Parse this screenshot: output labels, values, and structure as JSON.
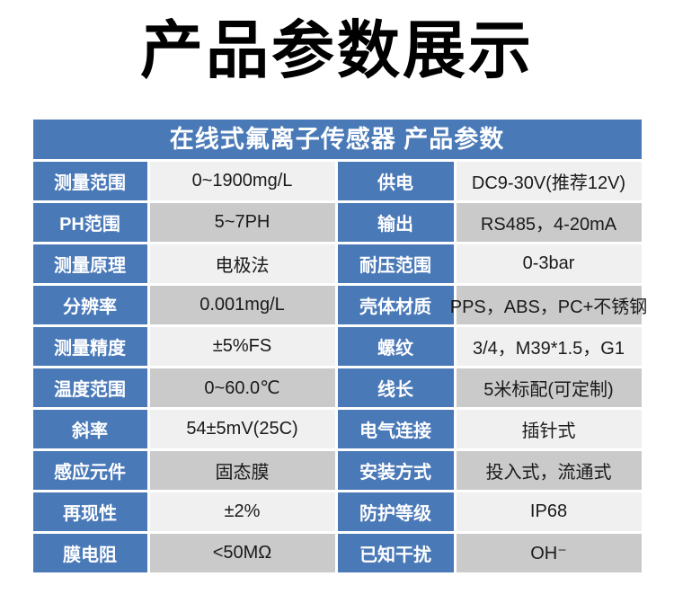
{
  "title": "产品参数展示",
  "table": {
    "header": "在线式氟离子传感器 产品参数",
    "colors": {
      "blue": "#4a79b8",
      "light": "#f1f0f0",
      "dark": "#cbcaca",
      "gap": "#ffffff",
      "header_text": "#ffffff",
      "label_text": "#ffffff",
      "value_text": "#1a1a1a"
    },
    "rows": [
      {
        "label_left": "测量范围",
        "value_left": "0~1900mg/L",
        "label_right": "供电",
        "value_right": "DC9-30V(推荐12V)"
      },
      {
        "label_left": "PH范围",
        "value_left": "5~7PH",
        "label_right": "输出",
        "value_right": "RS485，4-20mA"
      },
      {
        "label_left": "测量原理",
        "value_left": "电极法",
        "label_right": "耐压范围",
        "value_right": "0-3bar"
      },
      {
        "label_left": "分辨率",
        "value_left": "0.001mg/L",
        "label_right": "壳体材质",
        "value_right": "PPS，ABS，PC+不锈钢"
      },
      {
        "label_left": "测量精度",
        "value_left": "±5%FS",
        "label_right": "螺纹",
        "value_right": "3/4，M39*1.5，G1"
      },
      {
        "label_left": "温度范围",
        "value_left": "0~60.0℃",
        "label_right": "线长",
        "value_right": "5米标配(可定制)"
      },
      {
        "label_left": "斜率",
        "value_left": "54±5mV(25C)",
        "label_right": "电气连接",
        "value_right": "插针式"
      },
      {
        "label_left": "感应元件",
        "value_left": "固态膜",
        "label_right": "安装方式",
        "value_right": "投入式，流通式"
      },
      {
        "label_left": "再现性",
        "value_left": "±2%",
        "label_right": "防护等级",
        "value_right": "IP68"
      },
      {
        "label_left": "膜电阻",
        "value_left": "<50MΩ",
        "label_right": "已知干扰",
        "value_right": "OH⁻"
      }
    ]
  }
}
